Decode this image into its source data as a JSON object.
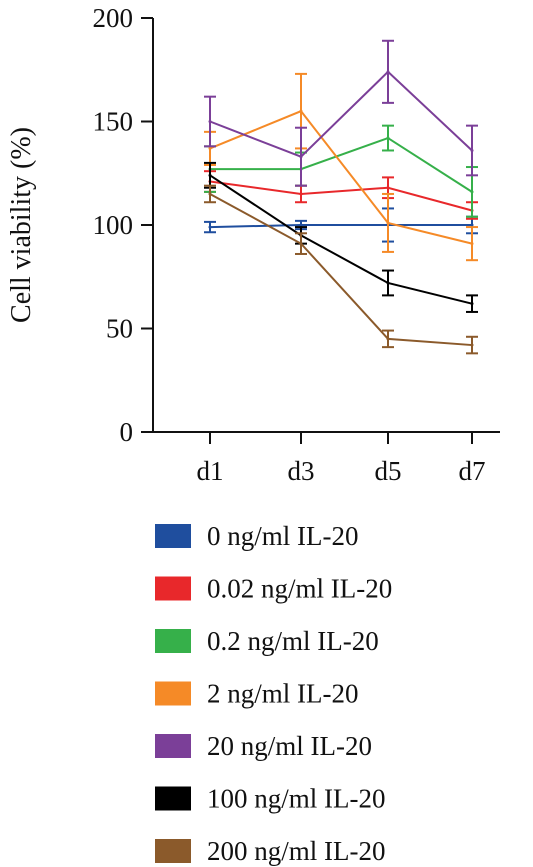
{
  "chart_data": {
    "type": "line",
    "title": "",
    "xlabel": "",
    "ylabel": "Cell viability (%)",
    "ylim": [
      0,
      200
    ],
    "yticks": [
      "0",
      "50",
      "100",
      "150",
      "200"
    ],
    "categories": [
      "d1",
      "d3",
      "d5",
      "d7"
    ],
    "legend_position": "bottom",
    "grid": false,
    "series": [
      {
        "name": "0 ng/ml IL-20",
        "color": "#1f4e9e",
        "values": [
          99,
          100,
          100,
          100
        ],
        "errors": [
          2.5,
          2,
          8,
          4
        ]
      },
      {
        "name": "0.02 ng/ml IL-20",
        "color": "#e8282b",
        "values": [
          121,
          115,
          118,
          107
        ],
        "errors": [
          5,
          4,
          5,
          4
        ]
      },
      {
        "name": "0.2 ng/ml IL-20",
        "color": "#36b04a",
        "values": [
          127,
          127,
          142,
          116
        ],
        "errors": [
          11,
          8,
          6,
          12
        ]
      },
      {
        "name": "2 ng/ml IL-20",
        "color": "#f58a27",
        "values": [
          137,
          155,
          101,
          91
        ],
        "errors": [
          8,
          18,
          14,
          8
        ]
      },
      {
        "name": "20 ng/ml IL-20",
        "color": "#7b3f98",
        "values": [
          150,
          133,
          174,
          136
        ],
        "errors": [
          12,
          14,
          15,
          12
        ]
      },
      {
        "name": "100 ng/ml IL-20",
        "color": "#000000",
        "values": [
          124,
          95,
          72,
          62
        ],
        "errors": [
          6,
          4,
          6,
          4
        ]
      },
      {
        "name": "200 ng/ml IL-20",
        "color": "#8b5a2b",
        "values": [
          115,
          91,
          45,
          42
        ],
        "errors": [
          4,
          5,
          4,
          4
        ]
      }
    ]
  }
}
